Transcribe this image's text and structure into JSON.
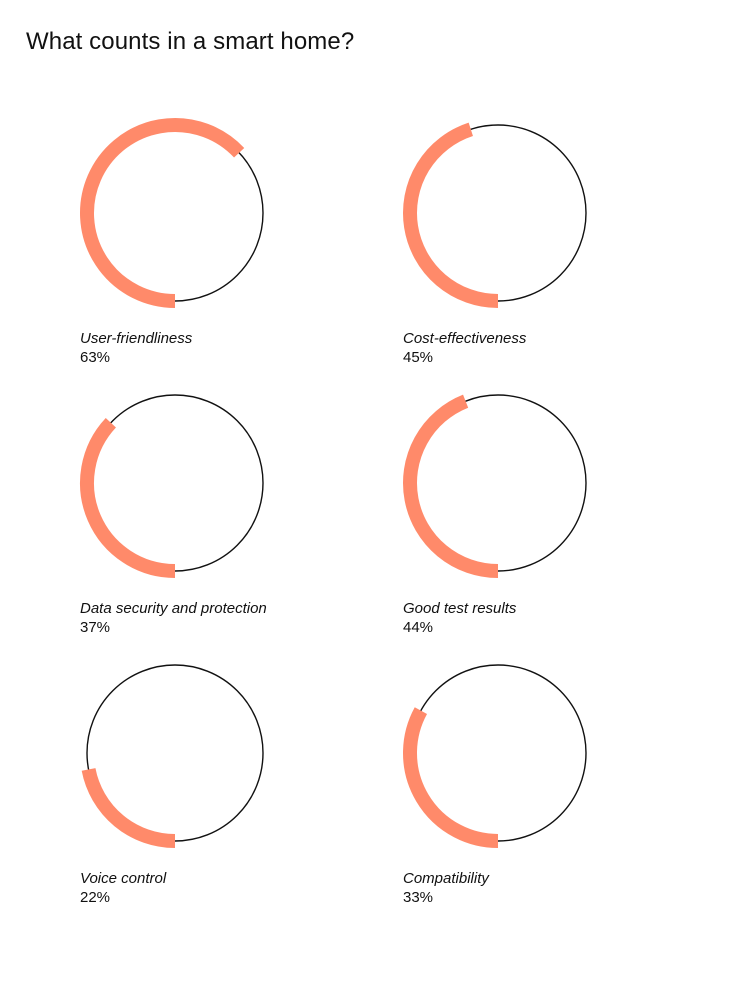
{
  "title": "What counts in a smart home?",
  "accent_color": "#FF8A6A",
  "ring_color": "#111111",
  "chart_data": {
    "type": "donut",
    "title": "What counts in a smart home?",
    "unit": "%",
    "items": [
      {
        "label": "User-friendliness",
        "value": 63,
        "value_text": "63%"
      },
      {
        "label": "Cost-effectiveness",
        "value": 45,
        "value_text": "45%"
      },
      {
        "label": "Data security and protection",
        "value": 37,
        "value_text": "37%"
      },
      {
        "label": "Good test results",
        "value": 44,
        "value_text": "44%"
      },
      {
        "label": "Voice control",
        "value": 22,
        "value_text": "22%"
      },
      {
        "label": "Compatibility",
        "value": 33,
        "value_text": "33%"
      }
    ]
  }
}
